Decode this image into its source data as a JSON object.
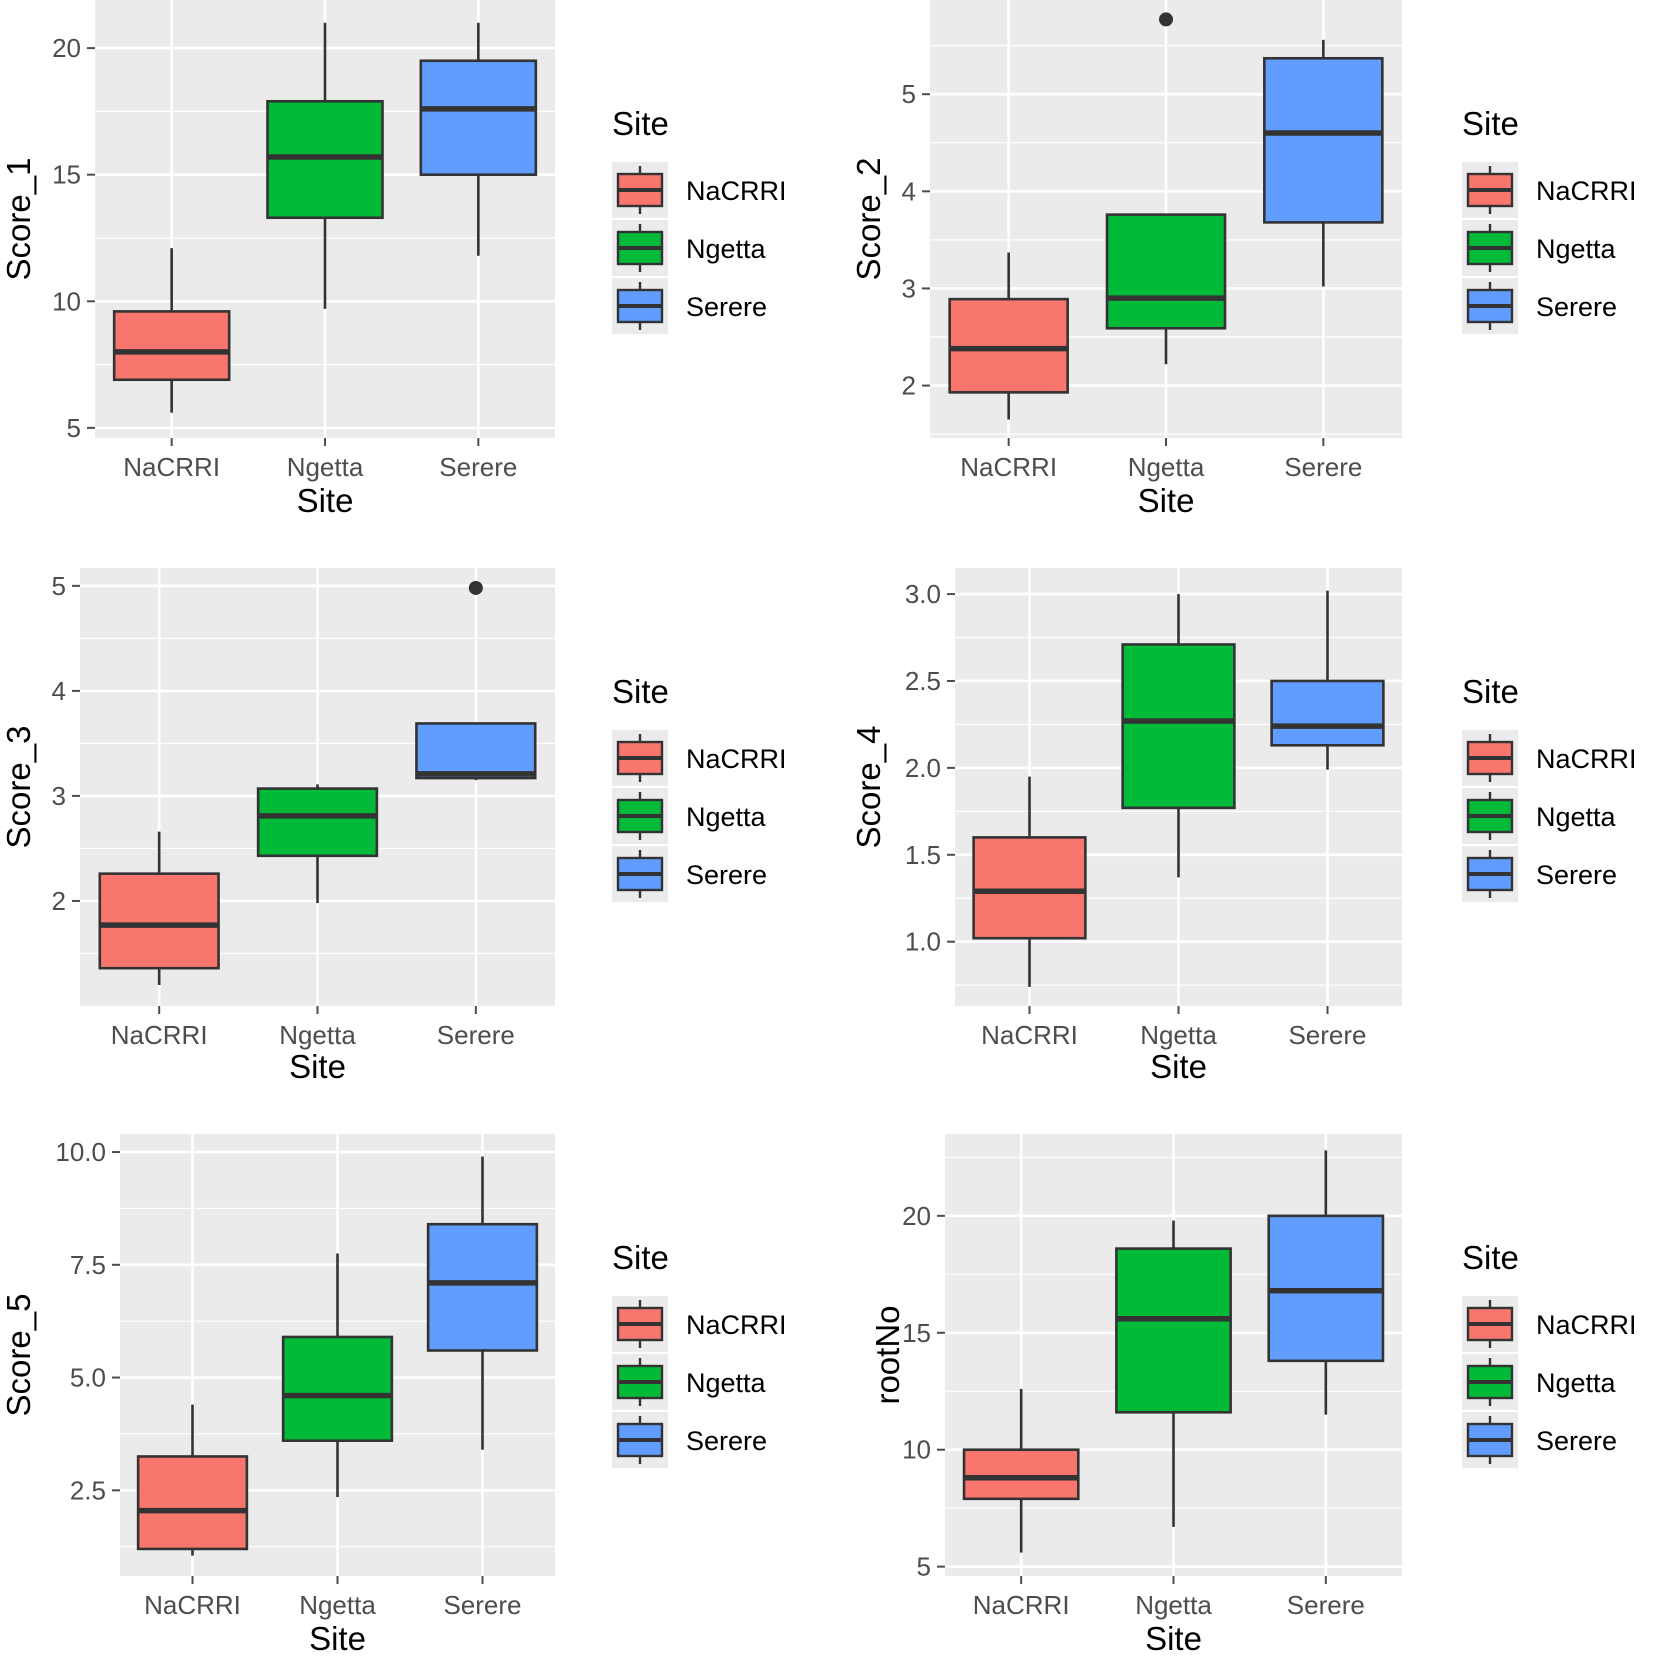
{
  "colors": {
    "panel": "#EBEBEB",
    "grid": "#FFFFFF",
    "outline": "#333333",
    "tick": "#4D4D4D"
  },
  "sites": [
    "NaCRRI",
    "Ngetta",
    "Serere"
  ],
  "site_colors": [
    "#F8766D",
    "#00BA38",
    "#619CFF"
  ],
  "legend": {
    "title": "Site",
    "labels": [
      "NaCRRI",
      "Ngetta",
      "Serere"
    ]
  },
  "chart_data": [
    {
      "type": "boxplot",
      "xlabel": "Site",
      "ylabel": "Score_1",
      "categories": [
        "NaCRRI",
        "Ngetta",
        "Serere"
      ],
      "ylim": [
        4.6,
        21.9
      ],
      "yticks": [
        5,
        10,
        15,
        20
      ],
      "ytick_labels": [
        "5",
        "10",
        "15",
        "20"
      ],
      "boxes": [
        {
          "whisker_low": 5.6,
          "q1": 6.9,
          "median": 8.0,
          "q3": 9.6,
          "whisker_high": 12.1,
          "outliers": []
        },
        {
          "whisker_low": 9.7,
          "q1": 13.3,
          "median": 15.7,
          "q3": 17.9,
          "whisker_high": 21.0,
          "outliers": []
        },
        {
          "whisker_low": 11.8,
          "q1": 15.0,
          "median": 17.6,
          "q3": 19.5,
          "whisker_high": 21.0,
          "outliers": []
        }
      ]
    },
    {
      "type": "boxplot",
      "xlabel": "Site",
      "ylabel": "Score_2",
      "categories": [
        "NaCRRI",
        "Ngetta",
        "Serere"
      ],
      "ylim": [
        1.46,
        5.97
      ],
      "yticks": [
        2,
        3,
        4,
        5
      ],
      "ytick_labels": [
        "2",
        "3",
        "4",
        "5"
      ],
      "boxes": [
        {
          "whisker_low": 1.65,
          "q1": 1.93,
          "median": 2.38,
          "q3": 2.89,
          "whisker_high": 3.37,
          "outliers": []
        },
        {
          "whisker_low": 2.22,
          "q1": 2.59,
          "median": 2.9,
          "q3": 3.76,
          "whisker_high": 3.76,
          "outliers": [
            5.77
          ]
        },
        {
          "whisker_low": 3.02,
          "q1": 3.68,
          "median": 4.6,
          "q3": 5.37,
          "whisker_high": 5.56,
          "outliers": []
        }
      ]
    },
    {
      "type": "boxplot",
      "xlabel": "Site",
      "ylabel": "Score_3",
      "categories": [
        "NaCRRI",
        "Ngetta",
        "Serere"
      ],
      "ylim": [
        1.0,
        5.17
      ],
      "yticks": [
        2,
        3,
        4,
        5
      ],
      "ytick_labels": [
        "2",
        "3",
        "4",
        "5"
      ],
      "boxes": [
        {
          "whisker_low": 1.2,
          "q1": 1.36,
          "median": 1.77,
          "q3": 2.26,
          "whisker_high": 2.66,
          "outliers": []
        },
        {
          "whisker_low": 1.98,
          "q1": 2.43,
          "median": 2.81,
          "q3": 3.07,
          "whisker_high": 3.11,
          "outliers": []
        },
        {
          "whisker_low": 3.15,
          "q1": 3.17,
          "median": 3.21,
          "q3": 3.69,
          "whisker_high": 3.69,
          "outliers": [
            4.98
          ]
        }
      ]
    },
    {
      "type": "boxplot",
      "xlabel": "Site",
      "ylabel": "Score_4",
      "categories": [
        "NaCRRI",
        "Ngetta",
        "Serere"
      ],
      "ylim": [
        0.63,
        3.15
      ],
      "yticks": [
        1.0,
        1.5,
        2.0,
        2.5,
        3.0
      ],
      "ytick_labels": [
        "1.0",
        "1.5",
        "2.0",
        "2.5",
        "3.0"
      ],
      "boxes": [
        {
          "whisker_low": 0.74,
          "q1": 1.02,
          "median": 1.29,
          "q3": 1.6,
          "whisker_high": 1.95,
          "outliers": []
        },
        {
          "whisker_low": 1.37,
          "q1": 1.77,
          "median": 2.27,
          "q3": 2.71,
          "whisker_high": 3.0,
          "outliers": []
        },
        {
          "whisker_low": 1.99,
          "q1": 2.13,
          "median": 2.24,
          "q3": 2.5,
          "whisker_high": 3.02,
          "outliers": []
        }
      ]
    },
    {
      "type": "boxplot",
      "xlabel": "Site",
      "ylabel": "Score_5",
      "categories": [
        "NaCRRI",
        "Ngetta",
        "Serere"
      ],
      "ylim": [
        0.6,
        10.4
      ],
      "yticks": [
        2.5,
        5.0,
        7.5,
        10.0
      ],
      "ytick_labels": [
        "2.5",
        "5.0",
        "7.5",
        "10.0"
      ],
      "boxes": [
        {
          "whisker_low": 1.05,
          "q1": 1.2,
          "median": 2.05,
          "q3": 3.25,
          "whisker_high": 4.4,
          "outliers": []
        },
        {
          "whisker_low": 2.35,
          "q1": 3.6,
          "median": 4.6,
          "q3": 5.9,
          "whisker_high": 7.75,
          "outliers": []
        },
        {
          "whisker_low": 3.4,
          "q1": 5.6,
          "median": 7.1,
          "q3": 8.4,
          "whisker_high": 9.9,
          "outliers": []
        }
      ]
    },
    {
      "type": "boxplot",
      "xlabel": "Site",
      "ylabel": "rootNo",
      "categories": [
        "NaCRRI",
        "Ngetta",
        "Serere"
      ],
      "ylim": [
        4.6,
        23.5
      ],
      "yticks": [
        5,
        10,
        15,
        20
      ],
      "ytick_labels": [
        "5",
        "10",
        "15",
        "20"
      ],
      "boxes": [
        {
          "whisker_low": 5.6,
          "q1": 7.9,
          "median": 8.8,
          "q3": 10.0,
          "whisker_high": 12.6,
          "outliers": []
        },
        {
          "whisker_low": 6.7,
          "q1": 11.6,
          "median": 15.6,
          "q3": 18.6,
          "whisker_high": 19.8,
          "outliers": []
        },
        {
          "whisker_low": 11.5,
          "q1": 13.8,
          "median": 16.8,
          "q3": 20.0,
          "whisker_high": 22.8,
          "outliers": []
        }
      ]
    }
  ]
}
